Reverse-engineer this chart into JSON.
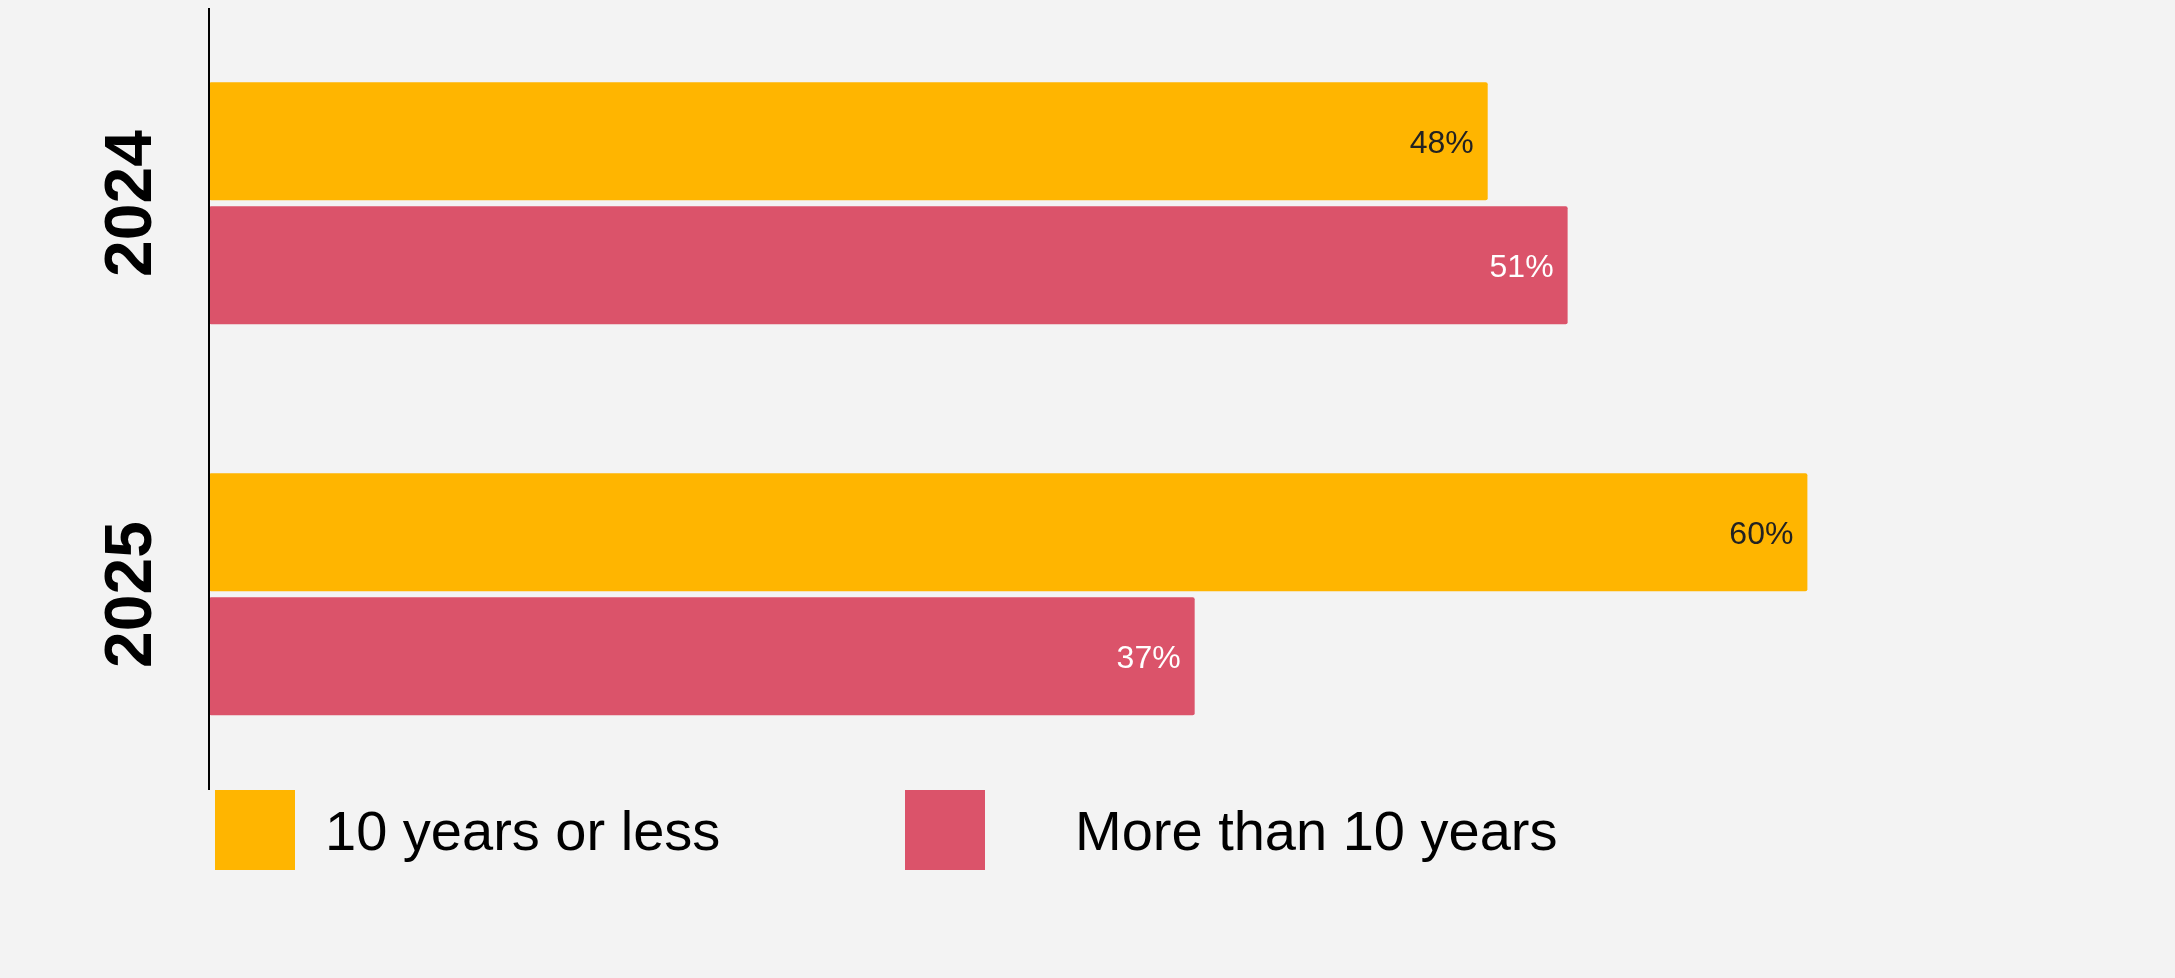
{
  "chart_data": {
    "type": "bar",
    "orientation": "horizontal",
    "categories": [
      "2024",
      "2025"
    ],
    "series": [
      {
        "name": "10 years or less",
        "color": "#ffb500",
        "values": [
          48,
          60
        ],
        "value_labels": [
          "48%",
          "60%"
        ]
      },
      {
        "name": "More than 10 years",
        "color": "#db536a",
        "values": [
          51,
          37
        ],
        "value_labels": [
          "51%",
          "37%"
        ]
      }
    ],
    "legend": "bottom",
    "tick_labels": "y"
  }
}
